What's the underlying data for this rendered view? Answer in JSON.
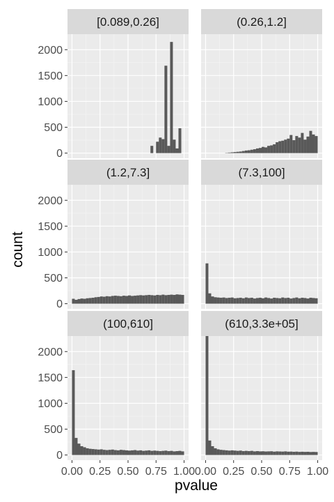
{
  "chart_data": {
    "type": "bar",
    "subtype": "faceted-histogram",
    "xlabel": "pvalue",
    "ylabel": "count",
    "xlim": [
      -0.04,
      1.04
    ],
    "ylim": [
      -100,
      2300
    ],
    "x_ticks": [
      0.0,
      0.25,
      0.5,
      0.75,
      1.0
    ],
    "x_tick_labels": [
      "0.00",
      "0.25",
      "0.50",
      "0.75",
      "1.00"
    ],
    "y_ticks": [
      0,
      500,
      1000,
      1500,
      2000
    ],
    "y_tick_labels": [
      "0",
      "500",
      "1000",
      "1500",
      "2000"
    ],
    "bin_width": 0.025,
    "bin_range": [
      0.0,
      1.0
    ],
    "grid": true,
    "legend": "none",
    "colors": {
      "panel_background": "#ebebeb",
      "strip_background": "#d9d9d9",
      "bar_fill": "#595959",
      "grid_major": "#ffffff"
    },
    "facets": [
      {
        "label": "[0.089,0.26]",
        "values": [
          0,
          0,
          0,
          0,
          0,
          0,
          0,
          0,
          0,
          0,
          0,
          0,
          0,
          0,
          0,
          0,
          0,
          0,
          0,
          0,
          0,
          0,
          0,
          0,
          0,
          0,
          0,
          0,
          140,
          0,
          220,
          300,
          270,
          1690,
          140,
          2150,
          260,
          90,
          480,
          0
        ]
      },
      {
        "label": "(0.26,1.2]",
        "values": [
          0,
          0,
          0,
          0,
          0,
          0,
          0,
          5,
          10,
          15,
          20,
          25,
          30,
          40,
          50,
          55,
          65,
          75,
          90,
          100,
          120,
          110,
          140,
          150,
          170,
          210,
          230,
          240,
          260,
          280,
          350,
          250,
          330,
          300,
          390,
          260,
          320,
          430,
          360,
          330
        ]
      },
      {
        "label": "(1.2,7.3]",
        "values": [
          95,
          75,
          90,
          100,
          95,
          105,
          110,
          115,
          125,
          130,
          140,
          135,
          145,
          140,
          150,
          155,
          150,
          145,
          155,
          150,
          160,
          150,
          155,
          160,
          165,
          160,
          165,
          170,
          165,
          160,
          170,
          165,
          175,
          165,
          170,
          175,
          170,
          180,
          175,
          170
        ]
      },
      {
        "label": "(7.3,100]",
        "values": [
          780,
          200,
          140,
          125,
          120,
          115,
          120,
          110,
          115,
          120,
          105,
          110,
          115,
          105,
          120,
          110,
          115,
          100,
          110,
          115,
          105,
          120,
          110,
          100,
          115,
          110,
          105,
          120,
          110,
          115,
          100,
          110,
          120,
          105,
          115,
          110,
          100,
          115,
          110,
          105
        ]
      },
      {
        "label": "(100,610]",
        "values": [
          1640,
          330,
          220,
          170,
          150,
          130,
          120,
          115,
          110,
          105,
          110,
          100,
          95,
          100,
          105,
          95,
          90,
          100,
          95,
          90,
          85,
          90,
          95,
          85,
          90,
          80,
          85,
          90,
          80,
          85,
          80,
          75,
          80,
          85,
          75,
          80,
          70,
          75,
          80,
          70
        ]
      },
      {
        "label": "(610,3.3e+05]",
        "values": [
          2300,
          280,
          170,
          130,
          110,
          100,
          95,
          90,
          85,
          90,
          85,
          80,
          85,
          75,
          80,
          75,
          80,
          70,
          75,
          70,
          72,
          68,
          70,
          72,
          65,
          70,
          68,
          66,
          70,
          64,
          66,
          62,
          65,
          60,
          63,
          60,
          62,
          58,
          60,
          58
        ]
      }
    ]
  }
}
